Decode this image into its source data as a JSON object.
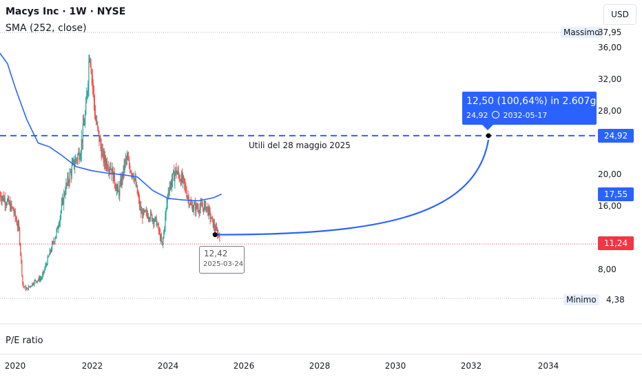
{
  "header": {
    "title": "Macys Inc · 1W · NYSE",
    "indicator": "SMA (252, close)"
  },
  "currency": "USD",
  "y_axis": {
    "ticks": [
      "36,00",
      "32,00",
      "28,00",
      "20,00",
      "16,00",
      "8,00"
    ],
    "max_label": "Massimo",
    "max_value": "37,95",
    "min_label": "Minimo",
    "min_value": "4,38",
    "target_box": "24,92",
    "sma_box": "17,55",
    "price_box": "11,24"
  },
  "x_axis": {
    "ticks": [
      "2020",
      "2022",
      "2024",
      "2026",
      "2028",
      "2030",
      "2032",
      "2034"
    ]
  },
  "annotations": {
    "projection_main": "12,50 (100,64%) in 2.607g",
    "projection_price": "24,92",
    "projection_date": "2032-05-17",
    "earnings": "Utili del 28 maggio 2025",
    "point_value": "12,42",
    "point_date": "2025-03-24"
  },
  "sub_pane": {
    "label": "P/E ratio"
  },
  "colors": {
    "up": "#26a69a",
    "down": "#ef5350",
    "sma": "#2962ff",
    "accent": "#2962ff",
    "price": "#f23645"
  },
  "chart_data": {
    "type": "candlestick",
    "xlim": [
      2019.5,
      2035.0
    ],
    "ylim": [
      4.38,
      37.95
    ],
    "x_ticks": [
      2020,
      2022,
      2024,
      2026,
      2028,
      2030,
      2032,
      2034
    ],
    "price_approx": [
      [
        2019.6,
        17.5
      ],
      [
        2019.8,
        16.5
      ],
      [
        2019.95,
        15.5
      ],
      [
        2020.1,
        13
      ],
      [
        2020.2,
        6
      ],
      [
        2020.3,
        5.5
      ],
      [
        2020.5,
        6.5
      ],
      [
        2020.7,
        7
      ],
      [
        2020.9,
        10
      ],
      [
        2021.1,
        13
      ],
      [
        2021.3,
        18
      ],
      [
        2021.5,
        21
      ],
      [
        2021.7,
        23
      ],
      [
        2021.85,
        28
      ],
      [
        2021.9,
        32
      ],
      [
        2021.95,
        36
      ],
      [
        2022.1,
        27
      ],
      [
        2022.3,
        22
      ],
      [
        2022.5,
        21
      ],
      [
        2022.7,
        17.5
      ],
      [
        2022.9,
        22
      ],
      [
        2023.1,
        20
      ],
      [
        2023.3,
        15
      ],
      [
        2023.5,
        15
      ],
      [
        2023.7,
        14
      ],
      [
        2023.85,
        11
      ],
      [
        2024.0,
        18
      ],
      [
        2024.2,
        20.5
      ],
      [
        2024.4,
        19
      ],
      [
        2024.6,
        16
      ],
      [
        2024.8,
        15.8
      ],
      [
        2025.0,
        16
      ],
      [
        2025.2,
        13.5
      ],
      [
        2025.3,
        12.5
      ]
    ],
    "sma_252_approx": [
      [
        2019.5,
        36
      ],
      [
        2019.8,
        34
      ],
      [
        2020.0,
        31
      ],
      [
        2020.3,
        27
      ],
      [
        2020.6,
        24
      ],
      [
        2020.9,
        23.5
      ],
      [
        2021.2,
        22.5
      ],
      [
        2021.6,
        21
      ],
      [
        2022.0,
        20.5
      ],
      [
        2022.4,
        20.2
      ],
      [
        2022.8,
        20
      ],
      [
        2023.2,
        19.7
      ],
      [
        2023.6,
        18
      ],
      [
        2024.0,
        17
      ],
      [
        2024.4,
        16.8
      ],
      [
        2024.8,
        16.7
      ],
      [
        2025.2,
        17.1
      ],
      [
        2025.4,
        17.55
      ]
    ],
    "dashed_level": 24.92,
    "last_price": 11.24,
    "projection": {
      "from": {
        "x": "2025-03-24",
        "y": 12.42
      },
      "to": {
        "x": "2032-05-17",
        "y": 24.92
      },
      "change": "12,50 (100,64%)",
      "days": "2.607g"
    }
  }
}
